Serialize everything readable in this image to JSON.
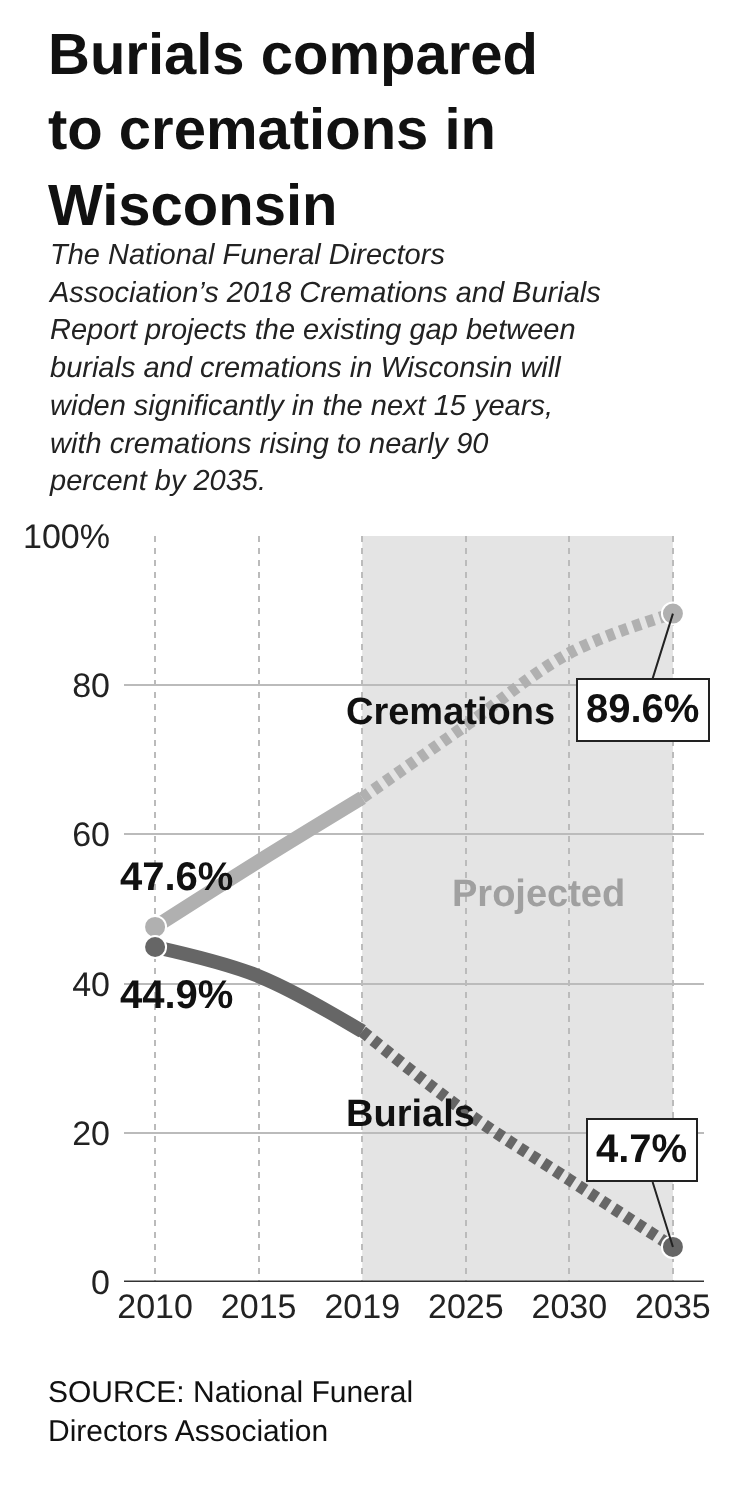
{
  "chart_data": {
    "type": "line",
    "title": "Burials compared to cremations in Wisconsin",
    "subtitle": "The National Funeral Directors Association’s 2018 Cremations and Burials Report projects the existing gap between burials and cremations in Wisconsin will widen significantly in the next 15 years, with cremations rising to nearly 90 percent by 2035.",
    "categories": [
      "2010",
      "2015",
      "2019",
      "2025",
      "2030",
      "2035"
    ],
    "series": [
      {
        "name": "Cremations",
        "color": "#b0b0b0",
        "line_style": "solid",
        "values": [
          47.6,
          56.4,
          64.9,
          null,
          null,
          null
        ],
        "value_labels": [
          "47.6%",
          null,
          null,
          null,
          null,
          null
        ]
      },
      {
        "color": "#b0b0b0",
        "line_style": "dotted",
        "values": [
          null,
          null,
          64.9,
          74.6,
          84.3,
          89.6
        ],
        "value_labels": [
          null,
          null,
          null,
          null,
          null,
          "89.6%"
        ]
      },
      {
        "name": "Burials",
        "color": "#666666",
        "line_style": "solid",
        "values": [
          44.9,
          41.0,
          33.6,
          null,
          null,
          null
        ],
        "value_labels": [
          "44.9%",
          null,
          null,
          null,
          null,
          null
        ]
      },
      {
        "color": "#666666",
        "line_style": "dotted",
        "values": [
          null,
          null,
          33.6,
          22.8,
          13.7,
          4.7
        ],
        "value_labels": [
          null,
          null,
          null,
          null,
          null,
          "4.7%"
        ]
      }
    ],
    "ylim": [
      0,
      100
    ],
    "yticks": [
      0,
      20,
      40,
      60,
      {
        "value": 80,
        "label": "80"
      },
      {
        "value": 100,
        "label": "100%"
      }
    ],
    "grid": true,
    "bands": [
      {
        "axis": "x",
        "from": "2019",
        "to": "2035",
        "label": "Projected",
        "color": "#e4e4e4"
      }
    ],
    "annotations": [
      "SOURCE: National Funeral Directors Association"
    ]
  }
}
